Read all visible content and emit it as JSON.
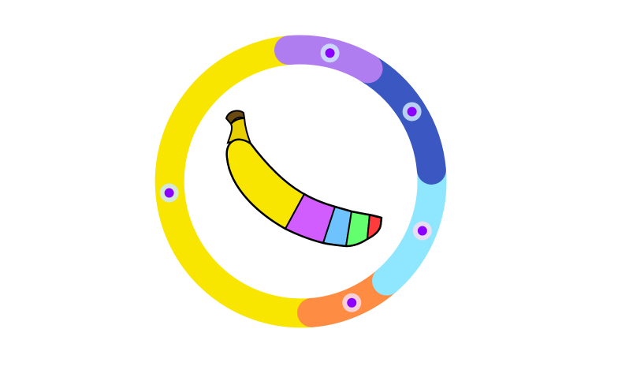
{
  "colors": {
    "background": "#ffffff",
    "handle_fill": "#8b00ff",
    "handle_halo": "#cfe6fb",
    "outline": "#000000",
    "banana_stem": "#6b4a12",
    "banana_neck": "#e8cf00"
  },
  "ring": {
    "segments": [
      {
        "name": "ring-segment-purple",
        "color": "#b07df0",
        "fraction": 0.1,
        "handle_halo": "#cfe6fb"
      },
      {
        "name": "ring-segment-blue",
        "color": "#3a57c2",
        "fraction": 0.15,
        "handle_halo": "#cfe6fb"
      },
      {
        "name": "ring-segment-cyan",
        "color": "#8ee6ff",
        "fraction": 0.15,
        "handle_halo": "#f6dcef"
      },
      {
        "name": "ring-segment-orange",
        "color": "#ff8c42",
        "fraction": 0.1,
        "handle_halo": "#f6dcef"
      },
      {
        "name": "ring-segment-yellow",
        "color": "#f9e600",
        "fraction": 0.5,
        "handle_halo": "#cfe6fb"
      }
    ]
  },
  "banana": {
    "icon": "banana-icon",
    "segments": [
      {
        "name": "banana-segment-yellow",
        "color": "#f9e600"
      },
      {
        "name": "banana-segment-purple",
        "color": "#d15cff"
      },
      {
        "name": "banana-segment-blue",
        "color": "#6ec3ff"
      },
      {
        "name": "banana-segment-green",
        "color": "#63ff6e"
      },
      {
        "name": "banana-segment-red",
        "color": "#ff3b3b"
      }
    ]
  }
}
